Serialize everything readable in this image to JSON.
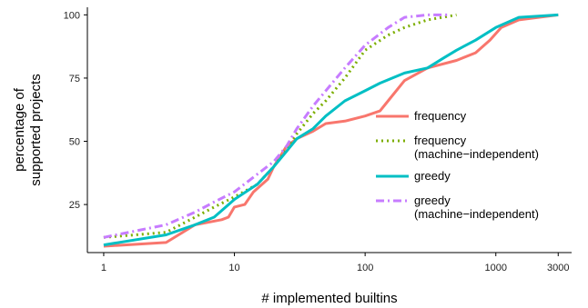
{
  "chart_data": {
    "type": "line",
    "xlabel": "# implemented builtins",
    "ylabel_lines": [
      "percentage of",
      "supported projects"
    ],
    "x_scale": "log",
    "xlim": [
      0.75,
      3800
    ],
    "ylim": [
      6,
      103
    ],
    "x_ticks": [
      {
        "value": 1,
        "label": "1"
      },
      {
        "value": 10,
        "label": "10"
      },
      {
        "value": 100,
        "label": "100"
      },
      {
        "value": 1000,
        "label": "1000"
      },
      {
        "value": 3000,
        "label": "3000"
      }
    ],
    "y_ticks": [
      {
        "value": 25,
        "label": "25"
      },
      {
        "value": 50,
        "label": "50"
      },
      {
        "value": 75,
        "label": "75"
      },
      {
        "value": 100,
        "label": "100"
      }
    ],
    "grid": false,
    "legend_position": "right",
    "series": [
      {
        "name": "frequency",
        "color": "#F8766D",
        "dash": "solid",
        "points": [
          [
            1,
            8.5
          ],
          [
            3,
            10
          ],
          [
            5,
            17
          ],
          [
            8,
            19
          ],
          [
            9,
            20
          ],
          [
            10,
            24
          ],
          [
            12,
            25
          ],
          [
            14,
            30
          ],
          [
            18,
            35
          ],
          [
            20,
            40
          ],
          [
            25,
            48
          ],
          [
            30,
            51
          ],
          [
            40,
            54
          ],
          [
            50,
            57
          ],
          [
            70,
            58
          ],
          [
            100,
            60
          ],
          [
            130,
            62
          ],
          [
            150,
            66
          ],
          [
            200,
            74
          ],
          [
            300,
            79
          ],
          [
            500,
            82
          ],
          [
            700,
            85
          ],
          [
            900,
            90
          ],
          [
            1100,
            95
          ],
          [
            1500,
            98
          ],
          [
            3000,
            100
          ]
        ]
      },
      {
        "name": "frequency\n(machine−independent)",
        "color": "#7CAE00",
        "dash": "dotted",
        "points": [
          [
            1,
            12
          ],
          [
            3,
            14
          ],
          [
            5,
            20
          ],
          [
            7,
            24
          ],
          [
            10,
            28
          ],
          [
            15,
            33
          ],
          [
            20,
            40
          ],
          [
            25,
            47
          ],
          [
            30,
            53
          ],
          [
            40,
            61
          ],
          [
            50,
            66
          ],
          [
            70,
            75
          ],
          [
            100,
            86
          ],
          [
            150,
            92
          ],
          [
            200,
            95
          ],
          [
            300,
            98
          ],
          [
            500,
            100
          ]
        ]
      },
      {
        "name": "greedy",
        "color": "#00BFC4",
        "dash": "solid",
        "points": [
          [
            1,
            9
          ],
          [
            3,
            13
          ],
          [
            5,
            17
          ],
          [
            7,
            20
          ],
          [
            10,
            27
          ],
          [
            15,
            33
          ],
          [
            20,
            40
          ],
          [
            25,
            46
          ],
          [
            30,
            51
          ],
          [
            40,
            55
          ],
          [
            50,
            60
          ],
          [
            70,
            66
          ],
          [
            100,
            70
          ],
          [
            130,
            73
          ],
          [
            200,
            77
          ],
          [
            300,
            79
          ],
          [
            400,
            83
          ],
          [
            500,
            86
          ],
          [
            700,
            90
          ],
          [
            1000,
            95
          ],
          [
            1500,
            99
          ],
          [
            3000,
            100
          ]
        ]
      },
      {
        "name": "greedy\n(machine−independent)",
        "color": "#C77CFF",
        "dash": "dotdash",
        "points": [
          [
            1,
            12
          ],
          [
            3,
            17
          ],
          [
            5,
            22
          ],
          [
            7,
            26
          ],
          [
            10,
            30
          ],
          [
            15,
            37
          ],
          [
            20,
            42
          ],
          [
            25,
            48
          ],
          [
            30,
            55
          ],
          [
            40,
            64
          ],
          [
            50,
            70
          ],
          [
            70,
            79
          ],
          [
            100,
            88
          ],
          [
            150,
            95
          ],
          [
            200,
            99
          ],
          [
            300,
            100
          ],
          [
            450,
            100
          ]
        ]
      }
    ]
  }
}
